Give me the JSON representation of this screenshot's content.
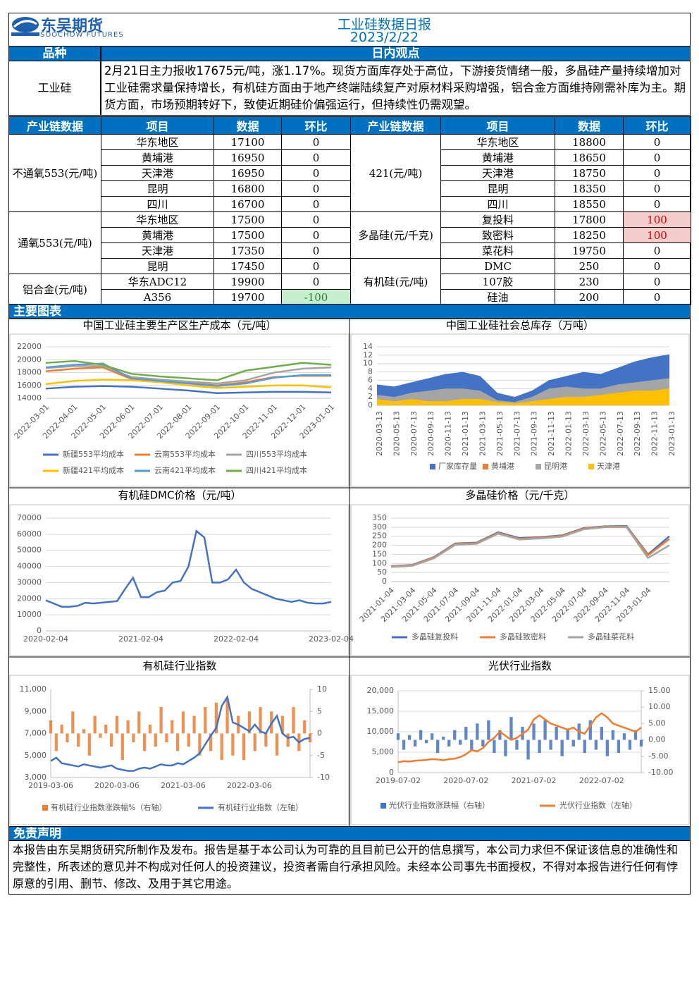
{
  "header": {
    "company": "东吴期货",
    "company_en": "SOOCHOW FUTURES",
    "title": "工业硅数据日报",
    "date": "2023/2/22"
  },
  "view": {
    "headers": [
      "品种",
      "日内观点"
    ],
    "product": "工业硅",
    "text": "2月21日主力报收17675元/吨，涨1.17%。现货方面库存处于高位，下游接货情绪一般，多晶硅产量持续增加对工业硅需求量保持增长，有机硅方面由于地产终端陆续复产对原材料采购增强，铝合金方面维持刚需补库为主。期货方面，市场预期转好下，致使近期硅价偏强运行，但持续性仍需观望。"
  },
  "table": {
    "headers": [
      "产业链数据",
      "项目",
      "数据",
      "环比",
      "产业链数据",
      "项目",
      "数据",
      "环比"
    ],
    "left": [
      {
        "group": "不通氧553(元/吨)",
        "rows": [
          [
            "华东地区",
            17100,
            0
          ],
          [
            "黄埔港",
            16950,
            0
          ],
          [
            "天津港",
            16950,
            0
          ],
          [
            "昆明",
            16800,
            0
          ],
          [
            "四川",
            16700,
            0
          ]
        ]
      },
      {
        "group": "通氧553(元/吨)",
        "rows": [
          [
            "华东地区",
            17500,
            0
          ],
          [
            "黄埔港",
            17500,
            0
          ],
          [
            "天津港",
            17350,
            0
          ],
          [
            "昆明",
            17450,
            0
          ]
        ]
      },
      {
        "group": "铝合金(元/吨)",
        "rows": [
          [
            "华东ADC12",
            19900,
            0
          ],
          [
            "A356",
            19700,
            -100
          ]
        ]
      }
    ],
    "right": [
      {
        "group": "421(元/吨)",
        "rows": [
          [
            "华东地区",
            18800,
            0
          ],
          [
            "黄埔港",
            18650,
            0
          ],
          [
            "天津港",
            18750,
            0
          ],
          [
            "昆明",
            18350,
            0
          ],
          [
            "四川",
            18550,
            0
          ]
        ]
      },
      {
        "group": "多晶硅(元/千克)",
        "rows": [
          [
            "复投料",
            17800,
            100
          ],
          [
            "致密料",
            18250,
            100
          ],
          [
            "菜花料",
            19750,
            0
          ]
        ]
      },
      {
        "group": "有机硅(元/吨)",
        "rows": [
          [
            "DMC",
            250,
            0
          ],
          [
            "107胶",
            230,
            0
          ],
          [
            "硅油",
            200,
            0
          ]
        ]
      }
    ]
  },
  "charts_heading": "主要图表",
  "chart_data": [
    {
      "type": "line",
      "title": "中国工业硅主要生产区生产成本（元/吨）",
      "grid": true,
      "categories": [
        "2022-03-01",
        "2022-04-01",
        "2022-05-01",
        "2022-06-01",
        "2022-07-01",
        "2022-08-01",
        "2022-09-01",
        "2022-10-01",
        "2022-11-01",
        "2022-12-01",
        "2023-01-01"
      ],
      "ylim": [
        14000,
        22000
      ],
      "yticks": [
        14000,
        16000,
        18000,
        20000,
        22000
      ],
      "series": [
        {
          "name": "新疆553平均成本",
          "color": "#4472c4",
          "values": [
            15500,
            15800,
            15900,
            15800,
            15500,
            15200,
            14800,
            14900,
            15000,
            15000,
            14900
          ]
        },
        {
          "name": "云南553平均成本",
          "color": "#ed7d31",
          "values": [
            18200,
            18600,
            18800,
            17000,
            16700,
            16400,
            16000,
            16500,
            17300,
            17500,
            17500
          ]
        },
        {
          "name": "四川553平均成本",
          "color": "#a5a5a5",
          "values": [
            18700,
            19000,
            19000,
            17300,
            16900,
            16600,
            16300,
            16800,
            18000,
            18600,
            18800
          ]
        },
        {
          "name": "新疆421平均成本",
          "color": "#ffc000",
          "values": [
            16200,
            16700,
            16900,
            16800,
            16500,
            16000,
            15600,
            15800,
            16000,
            16000,
            15700
          ]
        },
        {
          "name": "云南421平均成本",
          "color": "#5b9bd5",
          "values": [
            18800,
            19200,
            19400,
            17100,
            16700,
            16300,
            15900,
            16300,
            17200,
            17600,
            17600
          ]
        },
        {
          "name": "四川421平均成本",
          "color": "#70ad47",
          "values": [
            19500,
            19800,
            19200,
            17800,
            17400,
            17100,
            16800,
            18300,
            18900,
            19500,
            19200
          ]
        }
      ]
    },
    {
      "type": "area",
      "title": "中国工业硅社会总库存（万吨）",
      "grid": true,
      "categories": [
        "2020-03-13",
        "2020-05-13",
        "2020-07-13",
        "2020-09-13",
        "2020-11-13",
        "2021-01-13",
        "2021-03-13",
        "2021-05-13",
        "2021-07-13",
        "2021-09-13",
        "2021-11-13",
        "2022-01-13",
        "2022-03-13",
        "2022-05-13",
        "2022-07-13",
        "2022-09-13",
        "2022-11-13",
        "2023-01-13"
      ],
      "ylim": [
        0,
        14
      ],
      "yticks": [
        0,
        2,
        4,
        6,
        8,
        10,
        12,
        14
      ],
      "series": [
        {
          "name": "厂家库存量",
          "color": "#4472c4",
          "values": [
            5,
            4.5,
            5.5,
            6.5,
            7.5,
            8,
            7,
            3,
            2,
            3.5,
            6,
            7,
            8,
            7.5,
            9,
            10.5,
            11.5,
            12.2
          ]
        },
        {
          "name": "黄埔港",
          "color": "#ed7d31",
          "values": [
            2,
            1.5,
            2,
            2.5,
            2.2,
            2,
            1.5,
            0.5,
            0.3,
            1.5,
            2,
            2,
            2,
            2,
            2.5,
            3,
            3,
            3
          ]
        },
        {
          "name": "昆明港",
          "color": "#a5a5a5",
          "values": [
            2.5,
            2,
            3,
            3.5,
            4,
            4,
            3.5,
            1.2,
            0.8,
            2,
            4,
            4.5,
            4,
            4,
            5,
            5.5,
            6,
            6.5
          ]
        },
        {
          "name": "天津港",
          "color": "#ffc000",
          "values": [
            1.5,
            1,
            1.5,
            1,
            1,
            1.5,
            1.5,
            0.8,
            0.5,
            1,
            1.5,
            2,
            2,
            2.5,
            3,
            3.5,
            3.5,
            4
          ]
        }
      ]
    },
    {
      "type": "line",
      "title": "有机硅DMC价格（元/吨）",
      "grid": true,
      "categories": [
        "2020-02-04",
        null,
        null,
        null,
        null,
        null,
        null,
        null,
        null,
        null,
        null,
        null,
        "2021-02-04",
        null,
        null,
        null,
        null,
        null,
        null,
        null,
        null,
        null,
        null,
        null,
        "2022-02-04",
        null,
        null,
        null,
        null,
        null,
        null,
        null,
        null,
        null,
        null,
        null,
        "2023-02-04"
      ],
      "ylim": [
        0,
        70000
      ],
      "yticks": [
        0,
        10000,
        20000,
        30000,
        40000,
        50000,
        60000,
        70000
      ],
      "series": [
        {
          "name": "DMC",
          "color": "#4472c4",
          "values": [
            19000,
            17000,
            15000,
            15000,
            15500,
            17500,
            17000,
            17500,
            18000,
            18500,
            26000,
            33000,
            21000,
            21000,
            24000,
            25000,
            30000,
            31000,
            40000,
            62000,
            58000,
            30000,
            30000,
            32000,
            38000,
            30000,
            26000,
            24000,
            22000,
            20000,
            19000,
            18000,
            19000,
            17500,
            17000,
            17000,
            18000
          ]
        }
      ]
    },
    {
      "type": "line",
      "title": "多晶硅价格（元/千克）",
      "grid": true,
      "categories": [
        "2021-01-04",
        "2021-03-04",
        "2021-05-04",
        "2021-07-04",
        "2021-09-04",
        "2021-11-04",
        "2022-01-04",
        "2022-03-04",
        "2022-05-04",
        "2022-07-04",
        "2022-09-04",
        "2022-11-04",
        "2023-01-04",
        null
      ],
      "ylim": [
        0,
        350
      ],
      "yticks": [
        0,
        50,
        100,
        150,
        200,
        250,
        300,
        350
      ],
      "series": [
        {
          "name": "多晶硅复投料",
          "color": "#4472c4",
          "values": [
            85,
            92,
            135,
            210,
            215,
            272,
            240,
            245,
            255,
            295,
            305,
            306,
            150,
            250
          ]
        },
        {
          "name": "多晶硅致密料",
          "color": "#ed7d31",
          "values": [
            83,
            90,
            132,
            207,
            212,
            268,
            236,
            242,
            252,
            292,
            303,
            303,
            145,
            235
          ]
        },
        {
          "name": "多晶硅菜花料",
          "color": "#a5a5a5",
          "values": [
            80,
            87,
            128,
            203,
            208,
            264,
            232,
            238,
            248,
            288,
            300,
            300,
            130,
            200
          ]
        }
      ]
    },
    {
      "type": "combo",
      "title": "有机硅行业指数",
      "grid": false,
      "categories": [
        "2019-03-06",
        null,
        null,
        null,
        null,
        null,
        null,
        null,
        null,
        null,
        null,
        null,
        "2020-03-06",
        null,
        null,
        null,
        null,
        null,
        null,
        null,
        null,
        null,
        null,
        null,
        "2021-03-06",
        null,
        null,
        null,
        null,
        null,
        null,
        null,
        null,
        null,
        null,
        null,
        "2022-03-06",
        null,
        null,
        null,
        null,
        null,
        null,
        null,
        null,
        null,
        null,
        null
      ],
      "ylim": [
        3000,
        11000
      ],
      "yticks": [
        {
          "value": 3000,
          "label": "3,000"
        },
        {
          "value": 5000,
          "label": "5,000"
        },
        {
          "value": 7000,
          "label": "7,000"
        },
        {
          "value": 9000,
          "label": "9,000"
        },
        {
          "value": 11000,
          "label": "11,000"
        }
      ],
      "y2lim": [
        -10,
        10
      ],
      "y2ticks": [
        -10,
        -5,
        0,
        5,
        10
      ],
      "series": [
        {
          "name": "有机硅行业指数涨跌幅%（右轴）",
          "type": "bar",
          "axis": "y2",
          "color": "#ed7d31",
          "values": [
            3,
            -4,
            2,
            -2,
            5,
            -3,
            1,
            -5,
            4,
            -1,
            2,
            -3,
            4,
            -6,
            3,
            -2,
            5,
            -4,
            2,
            -3,
            6,
            -2,
            3,
            -4,
            5,
            -3,
            4,
            -5,
            6,
            -4,
            7,
            -6,
            8,
            -5,
            4,
            -6,
            5,
            -4,
            6,
            -3,
            5,
            -5,
            4,
            -3,
            6,
            -4,
            3,
            -2
          ]
        },
        {
          "name": "有机硅行业指数（左轴）",
          "type": "line",
          "color": "#4472c4",
          "values": [
            4500,
            4800,
            4300,
            4200,
            4100,
            4000,
            4200,
            4100,
            4000,
            3900,
            4000,
            4100,
            3800,
            3700,
            3600,
            3600,
            3800,
            3900,
            3800,
            4000,
            4200,
            4100,
            4100,
            4300,
            4200,
            4500,
            4800,
            5200,
            6000,
            6800,
            7500,
            9500,
            10300,
            8000,
            7800,
            7500,
            7200,
            7800,
            7200,
            7000,
            7900,
            8600,
            7000,
            6600,
            6700,
            6200,
            6500,
            6600
          ]
        }
      ]
    },
    {
      "type": "combo",
      "title": "光伏行业指数",
      "grid": true,
      "categories": [
        "2019-07-02",
        null,
        null,
        null,
        null,
        null,
        null,
        null,
        null,
        null,
        null,
        null,
        "2020-07-02",
        null,
        null,
        null,
        null,
        null,
        null,
        null,
        null,
        null,
        null,
        null,
        "2021-07-02",
        null,
        null,
        null,
        null,
        null,
        null,
        null,
        null,
        null,
        null,
        null,
        "2022-07-02",
        null,
        null,
        null,
        null,
        null,
        null,
        null
      ],
      "ylim": [
        0,
        20000
      ],
      "yticks": [
        0,
        {
          "value": 5000,
          "label": "5,000"
        },
        {
          "value": 10000,
          "label": "10,000"
        },
        {
          "value": 15000,
          "label": "15,000"
        },
        {
          "value": 20000,
          "label": "20,000"
        }
      ],
      "y2lim": [
        -10,
        15
      ],
      "y2ticks": [
        {
          "value": -10,
          "label": "-10.00"
        },
        {
          "value": -5,
          "label": "-5.00"
        },
        {
          "value": 0,
          "label": "0.00"
        },
        {
          "value": 5,
          "label": "5.00"
        },
        {
          "value": 10,
          "label": "10.00"
        },
        {
          "value": 15,
          "label": "15.00"
        }
      ],
      "series": [
        {
          "name": "光伏行业指数涨跌幅（右轴）",
          "type": "bar",
          "axis": "y2",
          "color": "#4472c4",
          "values": [
            2,
            -3,
            1.5,
            -2,
            3,
            -1,
            2,
            -4,
            1,
            -2,
            3,
            -1.5,
            4,
            -3,
            5,
            -2,
            6,
            -4,
            3,
            -5,
            7,
            -3,
            4,
            -6,
            5,
            -4,
            6,
            -3,
            4,
            -5,
            3,
            -2,
            5,
            -4,
            6,
            -3,
            4,
            -5,
            3,
            -4,
            2,
            -3,
            3,
            -2
          ]
        },
        {
          "name": "光伏行业指数（左轴）",
          "type": "line",
          "color": "#ed7d31",
          "values": [
            2500,
            2800,
            2700,
            2900,
            3000,
            3100,
            3300,
            3200,
            3000,
            3300,
            3400,
            3800,
            4500,
            5500,
            5200,
            6000,
            7500,
            8500,
            10000,
            9000,
            8000,
            8500,
            9500,
            10500,
            13000,
            14000,
            13000,
            12000,
            11500,
            11000,
            10500,
            11000,
            10000,
            9500,
            11500,
            13500,
            14500,
            13500,
            12000,
            11500,
            11000,
            10500,
            10000,
            11000
          ]
        }
      ]
    }
  ],
  "disclaimer": {
    "title": "免责声明",
    "text": "本报告由东吴期货研究所制作及发布。报告是基于本公司认为可靠的且目前已公开的信息撰写，本公司力求但不保证该信息的准确性和完整性，所表述的意见并不构成对任何人的投资建议，投资者需自行承担风险。未经本公司事先书面授权，不得对本报告进行任何有悖原意的引用、删节、修改、及用于其它用途。"
  }
}
